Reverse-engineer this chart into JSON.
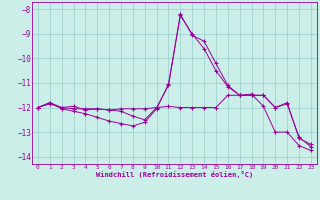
{
  "xlabel": "Windchill (Refroidissement éolien,°C)",
  "background_color": "#cceee8",
  "grid_color": "#99cccc",
  "line_color": "#990099",
  "xlim": [
    -0.5,
    23.5
  ],
  "ylim": [
    -14.3,
    -7.7
  ],
  "yticks": [
    -14,
    -13,
    -12,
    -11,
    -10,
    -9,
    -8
  ],
  "xticks": [
    0,
    1,
    2,
    3,
    4,
    5,
    6,
    7,
    8,
    9,
    10,
    11,
    12,
    13,
    14,
    15,
    16,
    17,
    18,
    19,
    20,
    21,
    22,
    23
  ],
  "series1_x": [
    0,
    1,
    2,
    3,
    4,
    5,
    6,
    7,
    8,
    9,
    10,
    11,
    12,
    13,
    14,
    15,
    16,
    17,
    18,
    19,
    20,
    21,
    22,
    23
  ],
  "series1_y": [
    -12.0,
    -11.85,
    -12.0,
    -11.95,
    -12.1,
    -12.05,
    -12.1,
    -12.15,
    -12.35,
    -12.5,
    -12.0,
    -11.1,
    -8.2,
    -9.05,
    -9.3,
    -10.2,
    -11.1,
    -11.5,
    -11.5,
    -11.5,
    -12.0,
    -11.8,
    -13.25,
    -13.5
  ],
  "series2_x": [
    0,
    1,
    2,
    3,
    4,
    5,
    6,
    7,
    8,
    9,
    10,
    11,
    12,
    13,
    14,
    15,
    16,
    17,
    18,
    19,
    20,
    21,
    22,
    23
  ],
  "series2_y": [
    -12.0,
    -11.8,
    -12.05,
    -12.15,
    -12.25,
    -12.4,
    -12.55,
    -12.65,
    -12.75,
    -12.6,
    -12.05,
    -11.05,
    -8.25,
    -9.0,
    -9.6,
    -10.5,
    -11.15,
    -11.5,
    -11.45,
    -11.95,
    -13.0,
    -13.0,
    -13.55,
    -13.75
  ],
  "series3_x": [
    0,
    1,
    2,
    3,
    4,
    5,
    6,
    7,
    8,
    9,
    10,
    11,
    12,
    13,
    14,
    15,
    16,
    17,
    18,
    19,
    20,
    21,
    22,
    23
  ],
  "series3_y": [
    -12.0,
    -11.8,
    -12.0,
    -12.05,
    -12.05,
    -12.05,
    -12.1,
    -12.05,
    -12.05,
    -12.05,
    -12.0,
    -11.95,
    -12.0,
    -12.0,
    -12.0,
    -12.0,
    -11.5,
    -11.5,
    -11.5,
    -11.5,
    -12.0,
    -11.85,
    -13.2,
    -13.6
  ]
}
